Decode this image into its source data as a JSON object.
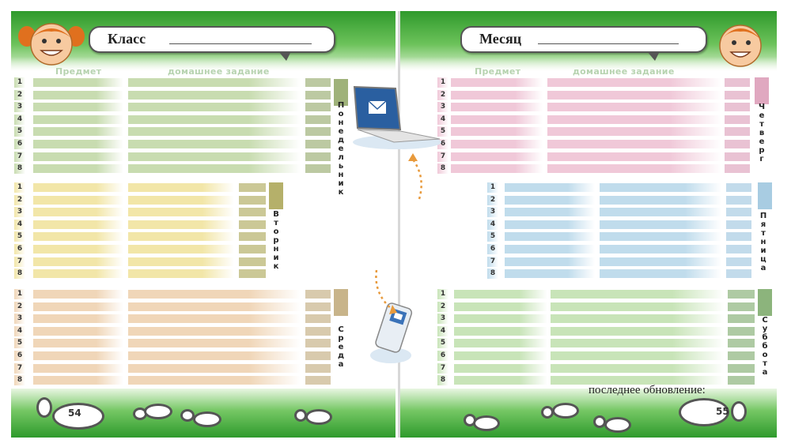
{
  "left": {
    "header_label": "Класс",
    "col_subject": "Предмет",
    "col_homework": "домашнее задание",
    "page_number": "54"
  },
  "right": {
    "header_label": "Месяц",
    "col_subject": "Предмет",
    "col_homework": "домашнее задание",
    "page_number": "55",
    "last_update_label": "последнее обновление:"
  },
  "row_numbers": [
    "1",
    "2",
    "3",
    "4",
    "5",
    "6",
    "7",
    "8"
  ],
  "days": [
    {
      "name": "Понедельник",
      "color": "#c8dcb0",
      "tab": "#9fb27a"
    },
    {
      "name": "Вторник",
      "color": "#f2e6a8",
      "tab": "#b5b06a"
    },
    {
      "name": "Среда",
      "color": "#f0d6b8",
      "tab": "#c8b48a"
    },
    {
      "name": "Четверг",
      "color": "#f0c8d8",
      "tab": "#e0a8c0"
    },
    {
      "name": "Пятница",
      "color": "#c0dcec",
      "tab": "#a8cce2"
    },
    {
      "name": "Суббота",
      "color": "#c8e4b8",
      "tab": "#8cb47c"
    }
  ],
  "icons": [
    "girl-avatar-icon",
    "boy-avatar-icon",
    "laptop-mail-icon",
    "phone-mail-icon",
    "footprint-icon"
  ]
}
